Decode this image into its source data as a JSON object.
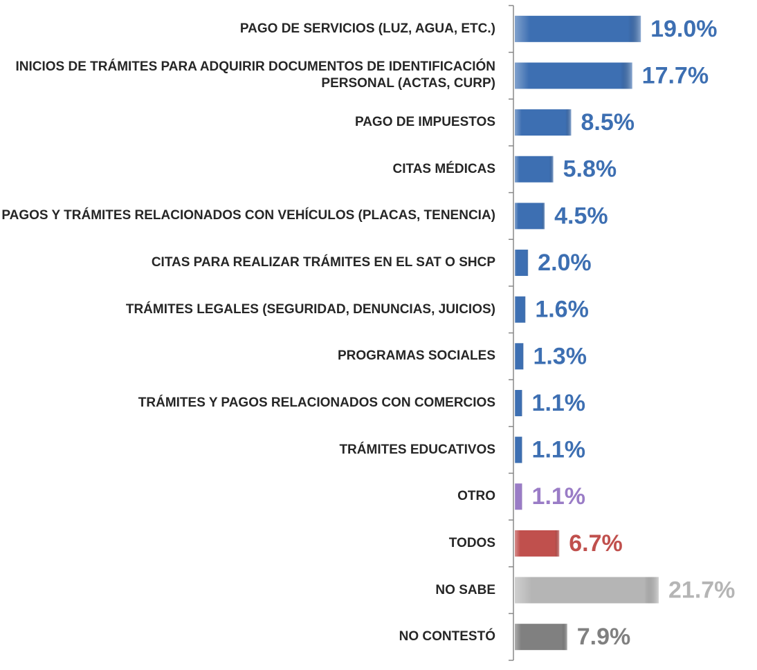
{
  "chart_data": {
    "type": "bar",
    "orientation": "horizontal",
    "categories": [
      "PAGO DE SERVICIOS (LUZ, AGUA, ETC.)",
      "INICIOS DE TRÁMITES PARA ADQUIRIR DOCUMENTOS DE IDENTIFICACIÓN PERSONAL (ACTAS, CURP)",
      "PAGO DE IMPUESTOS",
      "CITAS MÉDICAS",
      "PAGOS Y TRÁMITES RELACIONADOS CON VEHÍCULOS (PLACAS, TENENCIA)",
      "CITAS PARA REALIZAR TRÁMITES EN EL SAT O SHCP",
      "TRÁMITES LEGALES (SEGURIDAD, DENUNCIAS, JUICIOS)",
      "PROGRAMAS SOCIALES",
      "TRÁMITES Y PAGOS RELACIONADOS CON COMERCIOS",
      "TRÁMITES EDUCATIVOS",
      "OTRO",
      "TODOS",
      "NO SABE",
      "NO CONTESTÓ"
    ],
    "values": [
      19.0,
      17.7,
      8.5,
      5.8,
      4.5,
      2.0,
      1.6,
      1.3,
      1.1,
      1.1,
      1.1,
      6.7,
      21.7,
      7.9
    ],
    "value_labels": [
      "19.0%",
      "17.7%",
      "8.5%",
      "5.8%",
      "4.5%",
      "2.0%",
      "1.6%",
      "1.3%",
      "1.1%",
      "1.1%",
      "1.1%",
      "6.7%",
      "21.7%",
      "7.9%"
    ],
    "colors": [
      "#3d6fb2",
      "#3d6fb2",
      "#3d6fb2",
      "#3d6fb2",
      "#3d6fb2",
      "#3d6fb2",
      "#3d6fb2",
      "#3d6fb2",
      "#3d6fb2",
      "#3d6fb2",
      "#9a7cc6",
      "#c0504d",
      "#b5b5b5",
      "#808080"
    ]
  }
}
